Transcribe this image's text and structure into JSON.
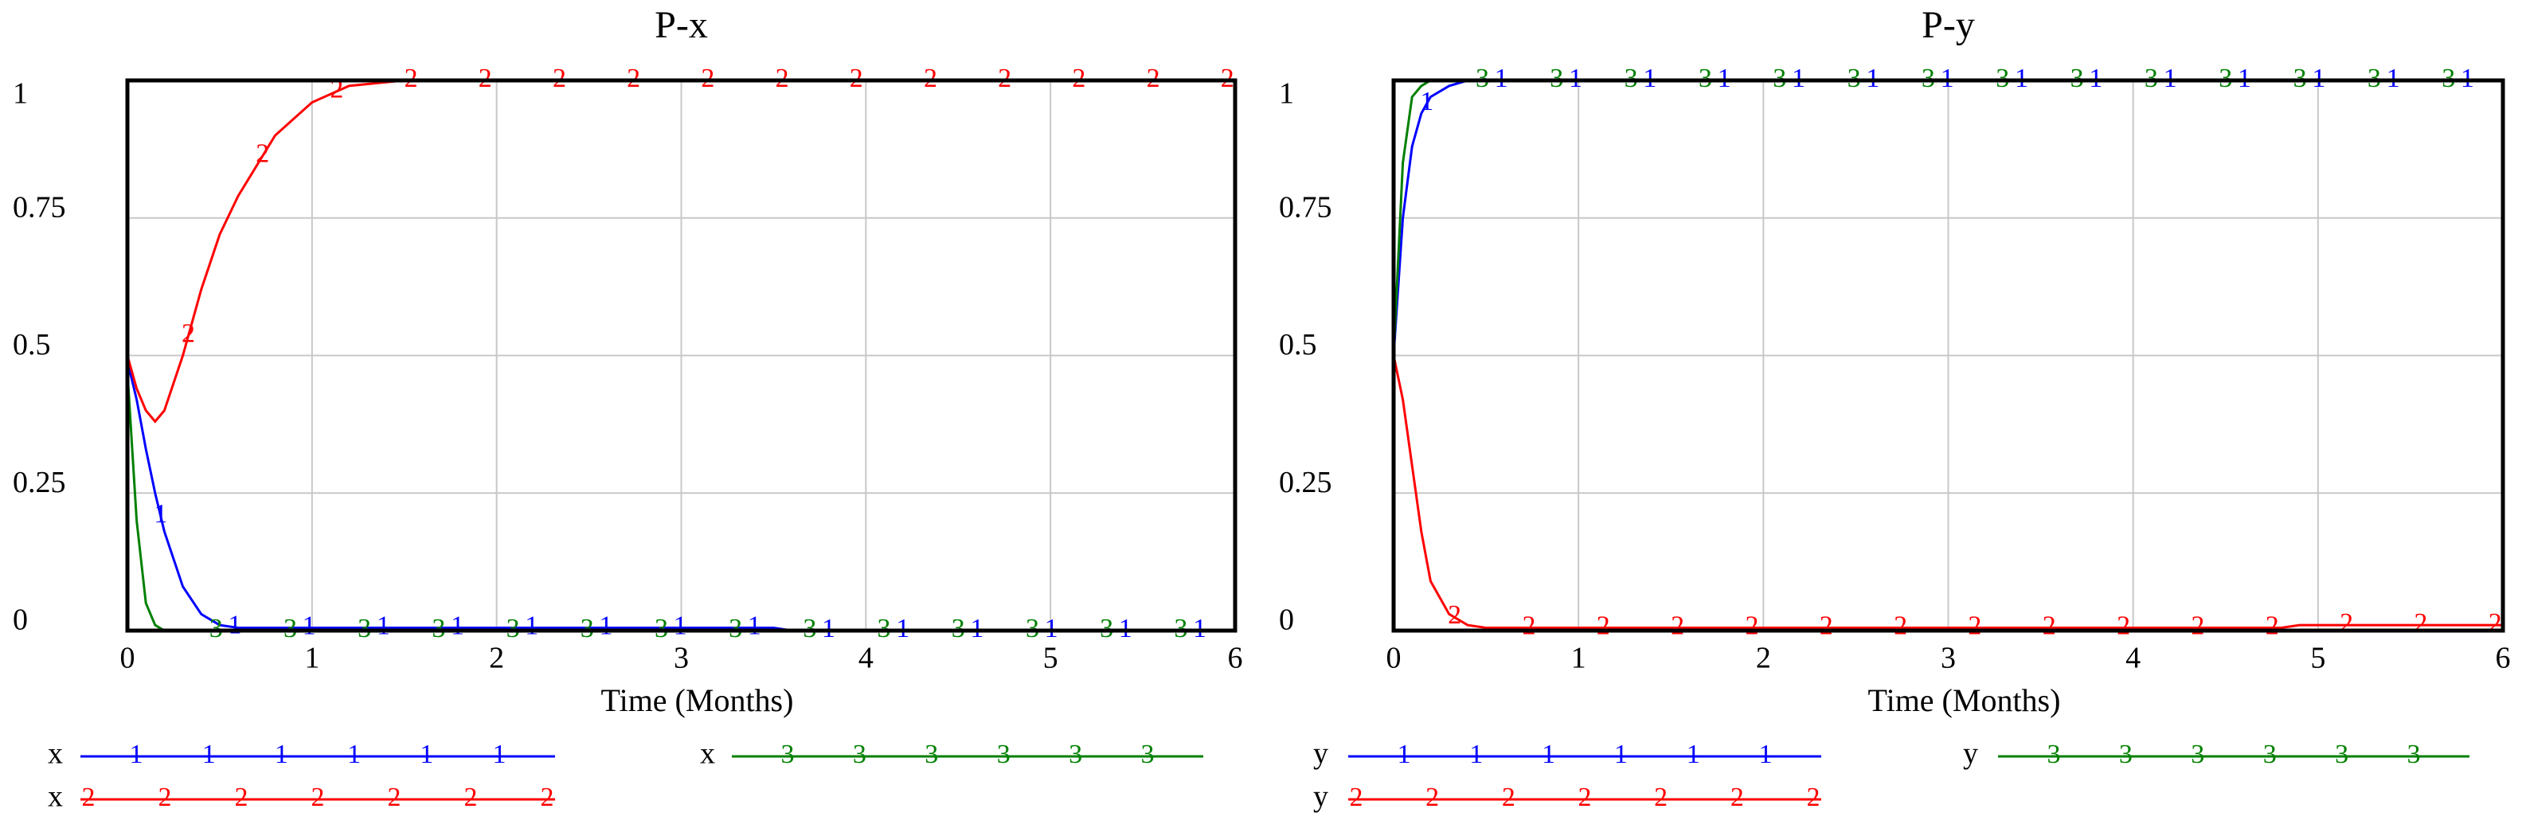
{
  "chart_data": [
    {
      "type": "line",
      "title": "P-x",
      "xlabel": "Time (Months)",
      "x": [
        0,
        0.05,
        0.1,
        0.15,
        0.2,
        0.3,
        0.4,
        0.5,
        0.6,
        0.8,
        1,
        1.2,
        1.5,
        2,
        3,
        3.5,
        3.6,
        5,
        6
      ],
      "xlim": [
        0,
        6
      ],
      "xticks": [
        0,
        1,
        2,
        3,
        4,
        5,
        6
      ],
      "ylim": [
        0,
        1
      ],
      "yticks": [
        0,
        0.25,
        0.5,
        0.75,
        1
      ],
      "grid": true,
      "series": [
        {
          "name": "x",
          "color": "#0000ff",
          "marker": "1",
          "values": [
            0.49,
            0.42,
            0.33,
            0.25,
            0.18,
            0.08,
            0.03,
            0.01,
            0.005,
            0.005,
            0.005,
            0.005,
            0.005,
            0.005,
            0.005,
            0.005,
            0,
            0,
            0
          ]
        },
        {
          "name": "x",
          "color": "#ff0000",
          "marker": "2",
          "values": [
            0.5,
            0.44,
            0.4,
            0.38,
            0.4,
            0.5,
            0.62,
            0.72,
            0.79,
            0.9,
            0.96,
            0.99,
            1,
            1,
            1,
            1,
            1,
            1,
            1
          ]
        },
        {
          "name": "x",
          "color": "#008000",
          "marker": "3",
          "values": [
            0.47,
            0.2,
            0.05,
            0.01,
            0,
            0,
            0,
            0,
            0,
            0,
            0,
            0,
            0,
            0,
            0,
            0,
            0,
            0,
            0
          ]
        }
      ]
    },
    {
      "type": "line",
      "title": "P-y",
      "xlabel": "Time (Months)",
      "x": [
        0,
        0.05,
        0.1,
        0.15,
        0.2,
        0.3,
        0.4,
        0.5,
        0.6,
        0.8,
        1,
        1.2,
        1.5,
        2,
        3,
        4,
        4.8,
        4.9,
        6
      ],
      "xlim": [
        0,
        6
      ],
      "xticks": [
        0,
        1,
        2,
        3,
        4,
        5,
        6
      ],
      "ylim": [
        0,
        1
      ],
      "yticks": [
        0,
        0.25,
        0.5,
        0.75,
        1
      ],
      "grid": true,
      "series": [
        {
          "name": "y",
          "color": "#0000ff",
          "marker": "1",
          "values": [
            0.5,
            0.75,
            0.88,
            0.94,
            0.97,
            0.99,
            1,
            1,
            1,
            1,
            1,
            1,
            1,
            1,
            1,
            1,
            1,
            1,
            1
          ]
        },
        {
          "name": "y",
          "color": "#ff0000",
          "marker": "2",
          "values": [
            0.5,
            0.42,
            0.3,
            0.18,
            0.09,
            0.03,
            0.01,
            0.005,
            0.005,
            0.005,
            0.005,
            0.005,
            0.005,
            0.005,
            0.005,
            0.005,
            0.005,
            0.01,
            0.01
          ]
        },
        {
          "name": "y",
          "color": "#008000",
          "marker": "3",
          "values": [
            0.5,
            0.85,
            0.97,
            0.99,
            1,
            1,
            1,
            1,
            1,
            1,
            1,
            1,
            1,
            1,
            1,
            1,
            1,
            1,
            1
          ]
        }
      ]
    }
  ]
}
